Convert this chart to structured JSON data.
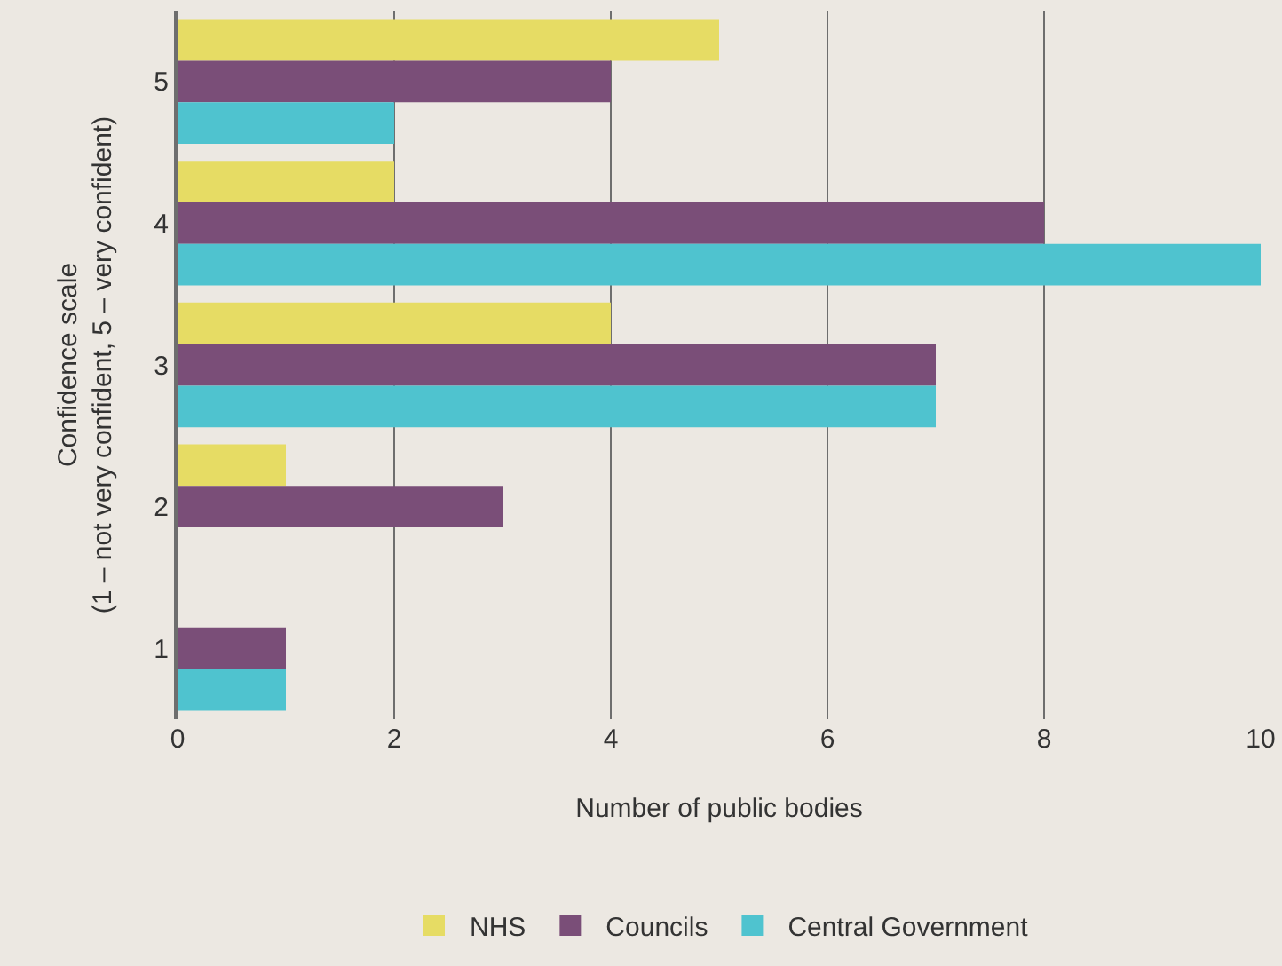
{
  "chart_data": {
    "type": "bar",
    "orientation": "horizontal",
    "xlabel": "Number of public bodies",
    "ylabel": "Confidence scale\n(1 – not very confident, 5 – very confident)",
    "categories": [
      "5",
      "4",
      "3",
      "2",
      "1"
    ],
    "series": [
      {
        "name": "NHS",
        "color": "#e6dc64",
        "values": [
          5,
          2,
          4,
          1,
          0
        ]
      },
      {
        "name": "Councils",
        "color": "#7a4e78",
        "values": [
          4,
          8,
          7,
          3,
          1
        ]
      },
      {
        "name": "Central Government",
        "color": "#4fc3cf",
        "values": [
          2,
          10,
          7,
          0,
          1
        ]
      }
    ],
    "xlim": [
      0,
      10
    ],
    "xticks": [
      0,
      2,
      4,
      6,
      8,
      10
    ],
    "grid": "x",
    "legend": "bottom"
  }
}
